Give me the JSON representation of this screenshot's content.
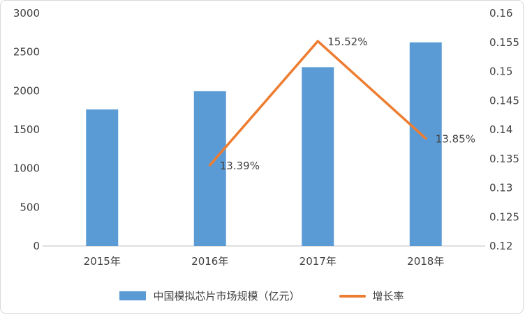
{
  "chart_data": {
    "type": "bar+line",
    "categories": [
      "2015年",
      "2016年",
      "2017年",
      "2018年"
    ],
    "series": [
      {
        "name": "中国模拟芯片市场规模（亿元）",
        "type": "bar",
        "axis": "left",
        "color": "#5B9BD5",
        "values": [
          1760,
          1995,
          2305,
          2625
        ]
      },
      {
        "name": "增长率",
        "type": "line",
        "axis": "right",
        "color": "#ED7D31",
        "values": [
          null,
          0.1339,
          0.1552,
          0.1385
        ],
        "labels": [
          null,
          "13.39%",
          "15.52%",
          "13.85%"
        ]
      }
    ],
    "left_axis": {
      "min": 0,
      "max": 3000,
      "step": 500,
      "ticks": [
        "0",
        "500",
        "1000",
        "1500",
        "2000",
        "2500",
        "3000"
      ]
    },
    "right_axis": {
      "min": 0.12,
      "max": 0.16,
      "step": 0.005,
      "ticks": [
        "0.12",
        "0.125",
        "0.13",
        "0.135",
        "0.14",
        "0.145",
        "0.15",
        "0.155",
        "0.16"
      ]
    },
    "grid": false,
    "legend_position": "bottom",
    "legend": [
      {
        "label": "中国模拟芯片市场规模（亿元）",
        "color": "#5B9BD5",
        "marker": "rect"
      },
      {
        "label": "增长率",
        "color": "#ED7D31",
        "marker": "line"
      }
    ],
    "axis_line_color": "#BFBFBF",
    "text_color": "#404040"
  }
}
